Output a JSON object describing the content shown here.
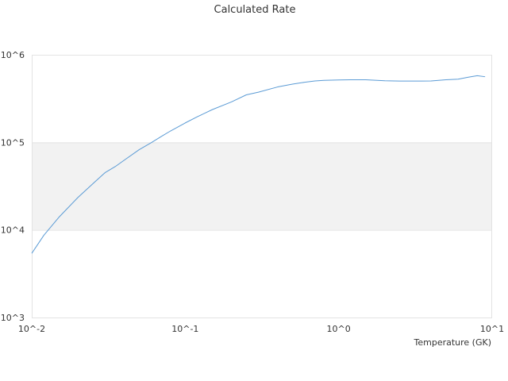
{
  "chart_data": {
    "type": "line",
    "title": "Calculated Rate",
    "xlabel": "Temperature (GK)",
    "ylabel": "",
    "x_scale": "log",
    "y_scale": "log",
    "xlim": [
      0.01,
      10
    ],
    "ylim": [
      1000,
      1000000
    ],
    "x_tick_values": [
      0.01,
      0.1,
      1,
      10
    ],
    "y_tick_values": [
      1000,
      10000,
      100000,
      1000000
    ],
    "x_tick_labels": [
      "10^-2",
      "10^-1",
      "10^0",
      "10^1"
    ],
    "y_tick_labels": [
      "10^3",
      "10^4",
      "10^5",
      "10^6"
    ],
    "legend": "none",
    "grid": "y-bands",
    "series_color": "#5b9bd5",
    "band_color": "#f2f2f2",
    "series": [
      {
        "x": [
          0.01,
          0.012,
          0.015,
          0.02,
          0.025,
          0.03,
          0.035,
          0.04,
          0.05,
          0.06,
          0.07,
          0.08,
          0.1,
          0.12,
          0.15,
          0.2,
          0.25,
          0.3,
          0.4,
          0.5,
          0.6,
          0.7,
          0.8,
          1.0,
          1.2,
          1.5,
          2.0,
          2.5,
          3.0,
          3.5,
          4.0,
          5.0,
          6.0,
          7.0,
          8.0,
          9.0
        ],
        "y": [
          5400,
          8700,
          13900,
          23500,
          33700,
          45000,
          52900,
          62500,
          82300,
          99100,
          117000,
          134500,
          166600,
          196200,
          236300,
          289400,
          348600,
          374000,
          429000,
          461600,
          485400,
          501900,
          510700,
          515600,
          518700,
          518700,
          504400,
          500900,
          501000,
          501200,
          502000,
          517800,
          526700,
          555000,
          576200,
          561100
        ]
      }
    ]
  }
}
